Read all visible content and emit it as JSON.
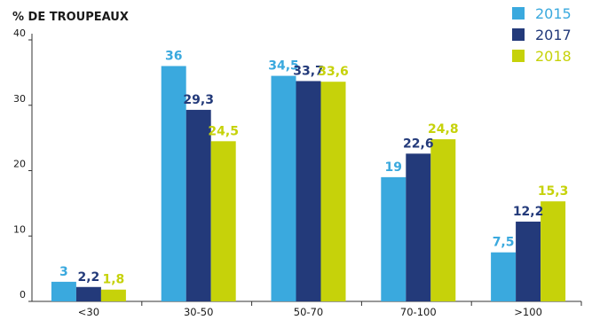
{
  "chart_data": {
    "type": "bar",
    "ylabel": "% DE TROUPEAUX",
    "categories": [
      "<30",
      "30-50",
      "50-70",
      "70-100",
      ">100"
    ],
    "yticks": [
      0,
      10,
      20,
      30,
      40
    ],
    "ylim": [
      0,
      40
    ],
    "grid": false,
    "legend_position": "top-right",
    "series": [
      {
        "name": "2015",
        "color": "#3aa9de",
        "values": [
          3,
          36,
          34.5,
          19,
          7.5
        ],
        "labels": [
          "3",
          "36",
          "34,5",
          "19",
          "7,5"
        ]
      },
      {
        "name": "2017",
        "color": "#233a7a",
        "values": [
          2.2,
          29.3,
          33.7,
          22.6,
          12.2
        ],
        "labels": [
          "2,2",
          "29,3",
          "33,7",
          "22,6",
          "12,2"
        ]
      },
      {
        "name": "2018",
        "color": "#c6d20a",
        "values": [
          1.8,
          24.5,
          33.6,
          24.8,
          15.3
        ],
        "labels": [
          "1,8",
          "24,5",
          "33,6",
          "24,8",
          "15,3"
        ]
      }
    ]
  }
}
